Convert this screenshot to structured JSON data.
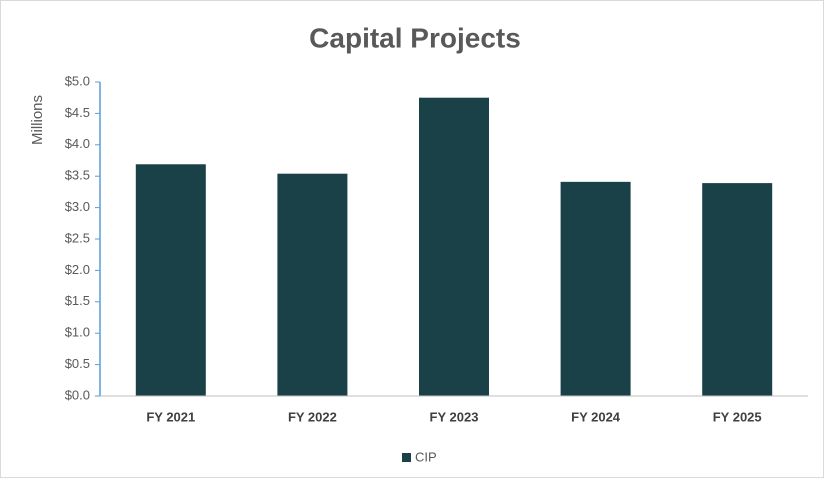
{
  "chart_data": {
    "type": "bar",
    "title": "Capital Projects",
    "y_label": "Millions",
    "categories": [
      "FY 2021",
      "FY 2022",
      "FY 2023",
      "FY 2024",
      "FY 2025"
    ],
    "series": [
      {
        "name": "CIP",
        "color": "#1a4048",
        "values": [
          3.69,
          3.54,
          4.75,
          3.41,
          3.39
        ]
      }
    ],
    "ylim": [
      0,
      5
    ],
    "yticks": [
      {
        "value": 0,
        "label": "$0.0"
      },
      {
        "value": 0.5,
        "label": "$0.5"
      },
      {
        "value": 1,
        "label": "$1.0"
      },
      {
        "value": 1.5,
        "label": "$1.5"
      },
      {
        "value": 2,
        "label": "$2.0"
      },
      {
        "value": 2.5,
        "label": "$2.5"
      },
      {
        "value": 3,
        "label": "$3.0"
      },
      {
        "value": 3.5,
        "label": "$3.5"
      },
      {
        "value": 4,
        "label": "$4.0"
      },
      {
        "value": 4.5,
        "label": "$4.5"
      },
      {
        "value": 5,
        "label": "$5.0"
      }
    ],
    "grid": false,
    "legend": "bottom"
  }
}
